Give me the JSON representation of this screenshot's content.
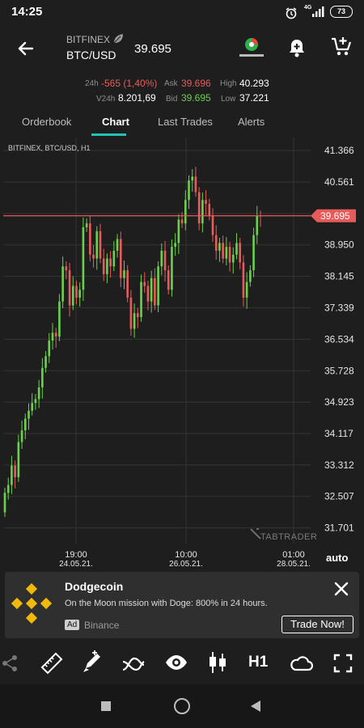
{
  "status": {
    "time": "14:25",
    "battery": "73",
    "network": "4G"
  },
  "header": {
    "exchange": "BITFINEX",
    "pair": "BTC/USD",
    "price": "39.695",
    "brand_icon": "currency-com-logo"
  },
  "stats": {
    "change_label": "24h",
    "change_value": "-565 (1,40%)",
    "ask_label": "Ask",
    "ask_value": "39.696",
    "high_label": "High",
    "high_value": "40.293",
    "vol_label": "V24h",
    "vol_value": "8.201,69",
    "bid_label": "Bid",
    "bid_value": "39.695",
    "low_label": "Low",
    "low_value": "37.221"
  },
  "tabs": [
    {
      "label": "Orderbook"
    },
    {
      "label": "Chart"
    },
    {
      "label": "Last Trades"
    },
    {
      "label": "Alerts"
    }
  ],
  "chart": {
    "caption": "BITFINEX, BTC/USD, H1",
    "price_label": "39.695",
    "watermark": "TABTRADER",
    "auto": "auto",
    "red_color": "#e85b5b",
    "green_color": "#6bd04b"
  },
  "chart_data": {
    "type": "candlestick",
    "ylim": [
      31300,
      41700
    ],
    "y_ticks": [
      "41.366",
      "40.561",
      "39.756",
      "38.950",
      "38.145",
      "37.339",
      "36.534",
      "35.728",
      "34.923",
      "34.117",
      "33.312",
      "32.507",
      "31.701"
    ],
    "x_ticks": [
      {
        "time": "19:00",
        "date": "24.05.21."
      },
      {
        "time": "10:00",
        "date": "26.05.21."
      },
      {
        "time": "01:00",
        "date": "28.05.21."
      }
    ],
    "current_price": 39695,
    "closes": [
      32600,
      32800,
      33300,
      33000,
      33900,
      34200,
      34500,
      34700,
      34900,
      35000,
      35300,
      35800,
      36100,
      36500,
      36700,
      36600,
      37500,
      38400,
      38300,
      37400,
      37900,
      37600,
      37800,
      39400,
      39500,
      38700,
      38600,
      39300,
      38600,
      38200,
      38600,
      38400,
      38800,
      39100,
      38100,
      38300,
      37600,
      36800,
      37200,
      37100,
      38000,
      37900,
      37500,
      38100,
      37400,
      38400,
      38800,
      38300,
      37800,
      38900,
      39000,
      39600,
      39500,
      40100,
      40600,
      40700,
      40300,
      39500,
      40100,
      40000,
      39700,
      39200,
      38800,
      39000,
      38600,
      38900,
      38500,
      38700,
      39000,
      38500,
      37600,
      38000,
      38300,
      39200,
      39700,
      39695
    ]
  },
  "ad": {
    "title": "Dodgecoin",
    "body": "On the Moon mission with Doge: 800% in 24 hours.",
    "badge": "Ad",
    "advertiser": "Binance",
    "cta": "Trade Now!"
  },
  "toolbar": {
    "timeframe": "H1"
  }
}
